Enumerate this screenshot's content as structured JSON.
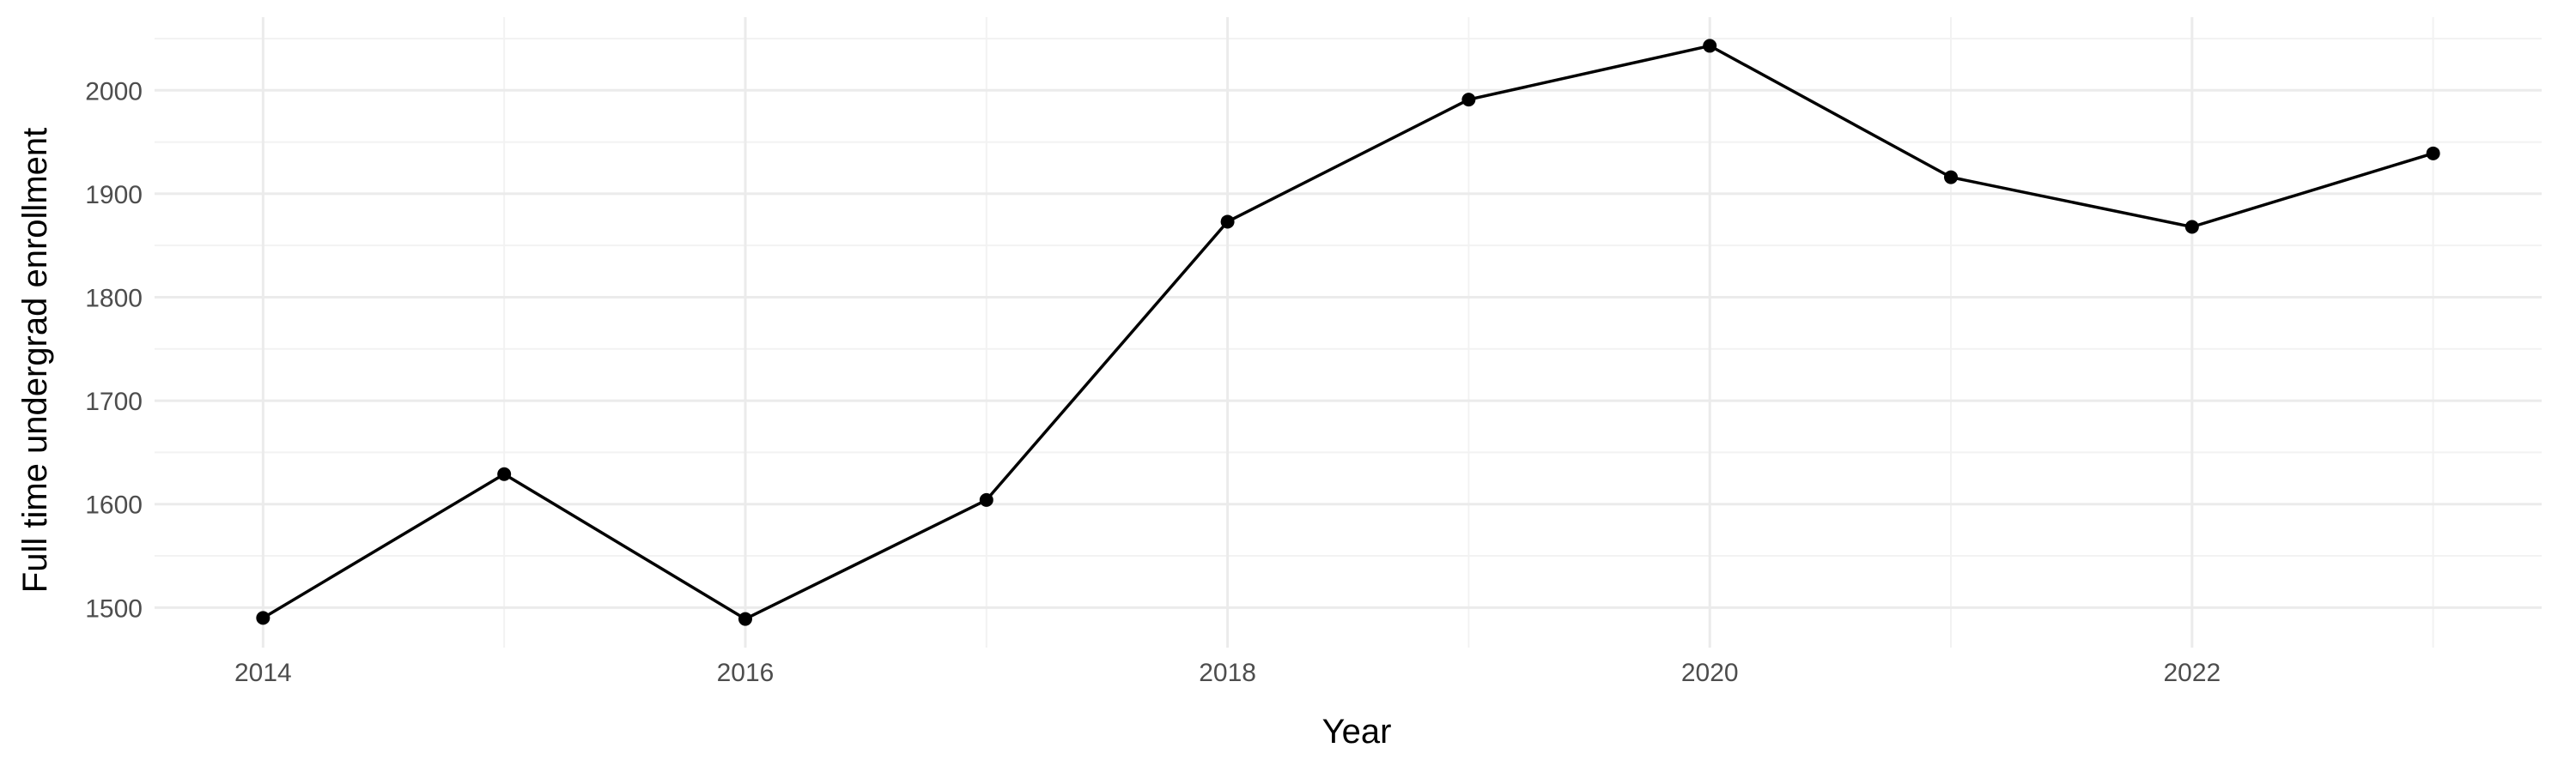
{
  "chart_data": {
    "type": "line",
    "title": "",
    "xlabel": "Year",
    "ylabel": "Full time undergrad enrollment",
    "x": [
      2014,
      2015,
      2016,
      2017,
      2018,
      2019,
      2020,
      2021,
      2022,
      2023
    ],
    "series": [
      {
        "values": [
          1490,
          1629,
          1489,
          1604,
          1873,
          1991,
          2043,
          1916,
          1868,
          1939
        ]
      }
    ],
    "x_ticks": [
      2014,
      2016,
      2018,
      2020,
      2022
    ],
    "x_tick_labels": [
      "2014",
      "2016",
      "2018",
      "2020",
      "2022"
    ],
    "y_ticks": [
      1500,
      1600,
      1700,
      1800,
      1900,
      2000
    ],
    "y_tick_labels": [
      "1500",
      "1600",
      "1700",
      "1800",
      "1900",
      "2000"
    ],
    "xlim": [
      2013.55,
      2023.45
    ],
    "ylim": [
      1461.3,
      2070.7
    ],
    "grid": true,
    "line_color": "#000000",
    "point_color": "#000000",
    "grid_major_color": "#ebebeb",
    "grid_minor_color": "#f2f2f2"
  }
}
